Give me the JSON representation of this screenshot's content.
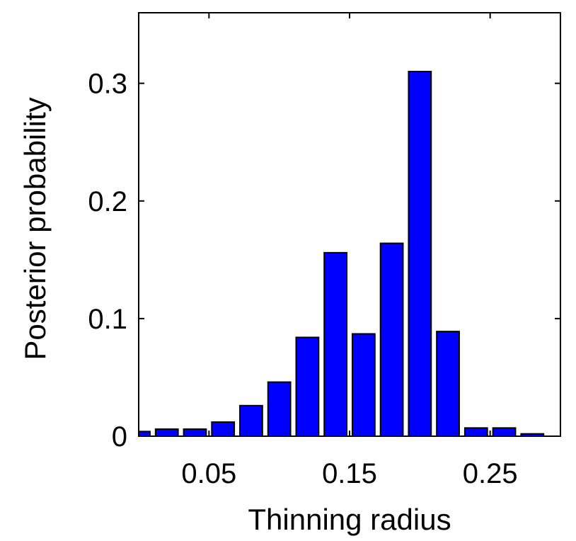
{
  "chart_data": {
    "type": "bar",
    "title": "",
    "xlabel": "Thinning radius",
    "ylabel": "Posterior probability",
    "x": [
      0.0,
      0.02,
      0.04,
      0.06,
      0.08,
      0.1,
      0.12,
      0.14,
      0.16,
      0.18,
      0.2,
      0.22,
      0.24,
      0.26,
      0.28
    ],
    "values": [
      0.004,
      0.006,
      0.006,
      0.012,
      0.026,
      0.046,
      0.084,
      0.156,
      0.087,
      0.164,
      0.31,
      0.089,
      0.007,
      0.007,
      0.002
    ],
    "bar_width": 0.016,
    "xlim": [
      0.0,
      0.3
    ],
    "ylim": [
      0,
      0.36
    ],
    "xticks": [
      0.05,
      0.15,
      0.25
    ],
    "xtick_labels": [
      "0.05",
      "0.15",
      "0.25"
    ],
    "yticks": [
      0,
      0.1,
      0.2,
      0.3
    ],
    "ytick_labels": [
      "0",
      "0.1",
      "0.2",
      "0.3"
    ],
    "bar_color": "#0000ff",
    "edge_color": "#000000",
    "grid": false,
    "legend": "none"
  }
}
